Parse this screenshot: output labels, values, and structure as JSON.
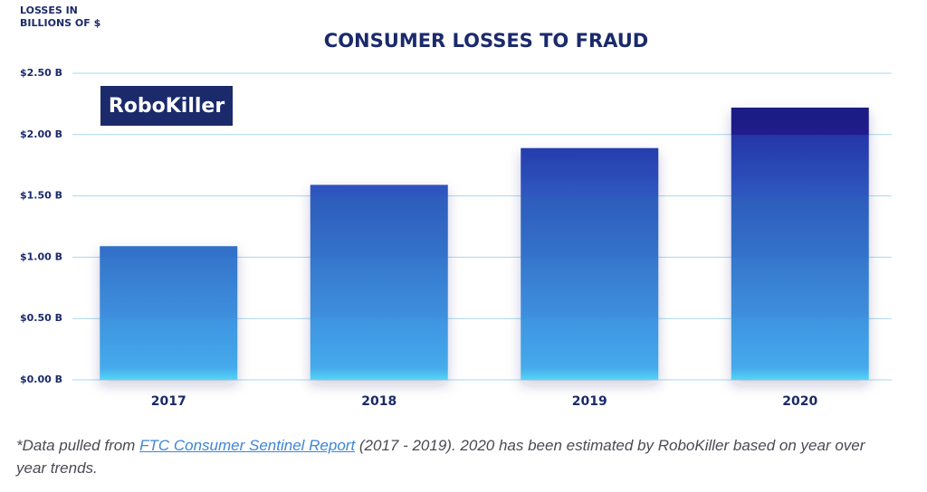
{
  "chart_data": {
    "type": "bar",
    "title": "CONSUMER LOSSES TO FRAUD",
    "y_label": [
      "LOSSES IN",
      "BILLIONS OF $"
    ],
    "categories": [
      "2017",
      "2018",
      "2019",
      "2020"
    ],
    "values": [
      1.09,
      1.59,
      1.89,
      2.22
    ],
    "ylim": [
      0,
      2.5
    ],
    "yticks": [
      {
        "value": 0,
        "label": "$0.00 B"
      },
      {
        "value": 0.5,
        "label": "$0.50 B"
      },
      {
        "value": 1,
        "label": "$1.00 B"
      },
      {
        "value": 1.5,
        "label": "$1.50 B"
      },
      {
        "value": 2,
        "label": "$2.00 B"
      },
      {
        "value": 2.5,
        "label": "$2.50 B"
      }
    ],
    "grid": true
  },
  "logo": "RoboKiller",
  "footnote": {
    "prefix": "*Data pulled from ",
    "link": "FTC Consumer Sentinel Report",
    "suffix": " (2017 - 2019). 2020 has been estimated by RoboKiller based on year over year trends."
  }
}
